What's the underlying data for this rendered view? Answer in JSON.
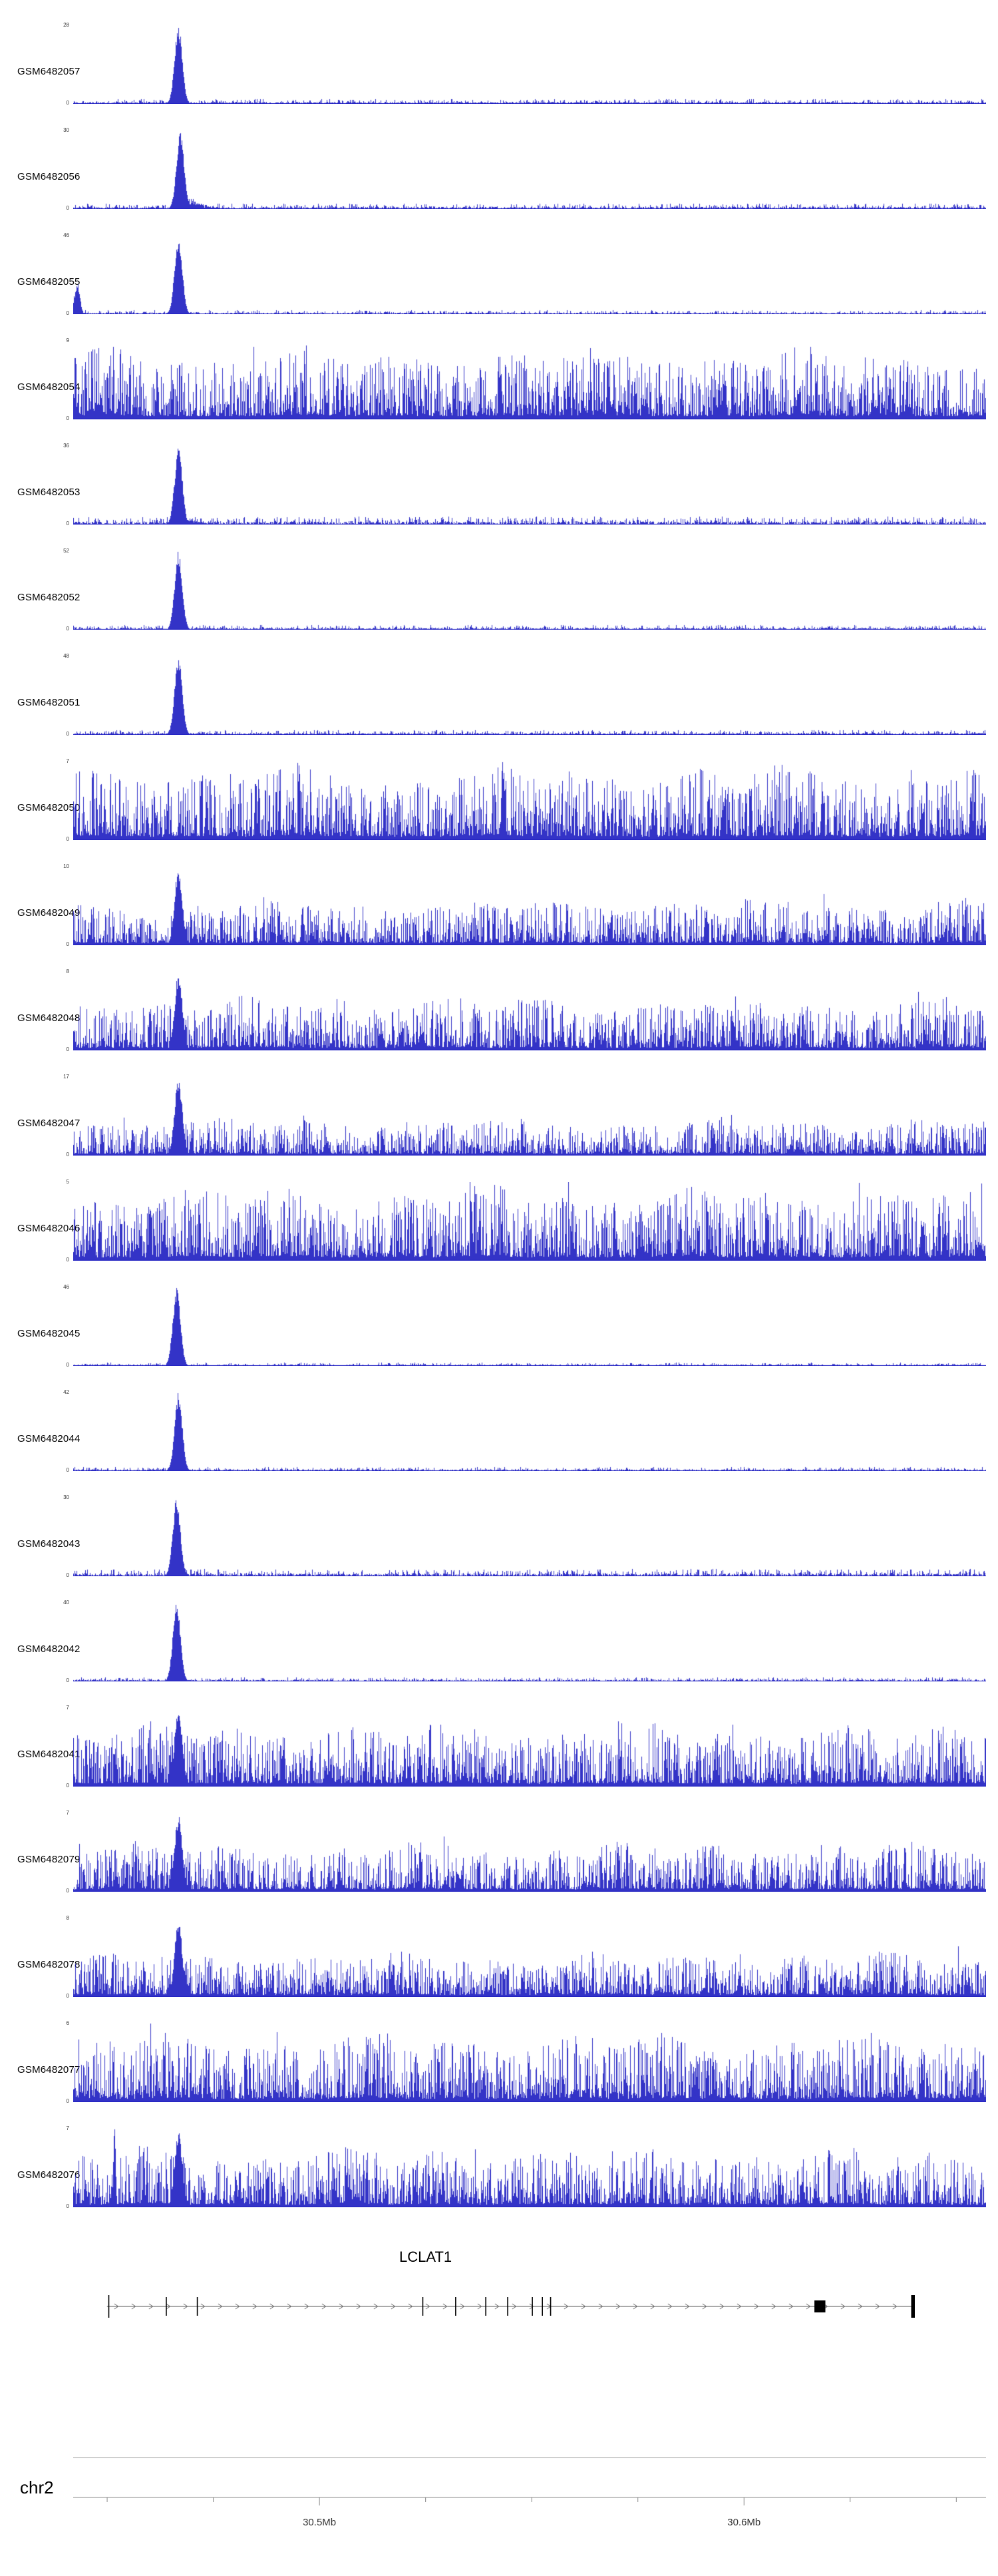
{
  "colors": {
    "signal": "#2222c2",
    "gene": "#000000",
    "axis": "#888888",
    "tick_text": "#333333"
  },
  "chart_data": {
    "type": "area",
    "title": "",
    "description": "Genome browser view of coverage/signal tracks (blue histograms) over chr2 around the LCLAT1 locus. Per-base values are not individually readable; each track is summarized by its y-axis maximum, baseline 0, and signal profile (sharp promoter peak near fraction 0.115 of the window vs. dense genome-wide noise).",
    "x_axis": {
      "chromosome": "chr2",
      "start_mb": 30.442,
      "end_mb": 30.657,
      "tick_values_mb": [
        30.45,
        30.475,
        30.5,
        30.525,
        30.55,
        30.575,
        30.6,
        30.625,
        30.65
      ],
      "labeled_ticks": [
        {
          "value": 30.5,
          "label": "30.5Mb"
        },
        {
          "value": 30.6,
          "label": "30.6Mb"
        }
      ]
    },
    "gene_track": {
      "name": "LCLAT1",
      "label_pos": 0.386,
      "strand": "+",
      "line_start": 0.037,
      "line_end": 0.921,
      "exon_ticks": [
        0.039,
        0.102,
        0.136,
        0.383,
        0.419,
        0.452,
        0.476,
        0.503,
        0.514,
        0.523
      ],
      "exon_boxes": [
        {
          "pos": 0.818,
          "width": 0.012,
          "height": 18
        },
        {
          "pos": 0.92,
          "width": 0.004,
          "height": 34
        }
      ],
      "arrow_spacing_px": 26
    },
    "tracks": [
      {
        "name": "GSM6482057",
        "ymax": 28,
        "ymin": 0,
        "profile": "peak",
        "bg": 0.06,
        "peak_pos": 0.115,
        "seed": 101
      },
      {
        "name": "GSM6482056",
        "ymax": 30,
        "ymin": 0,
        "profile": "peak",
        "bg": 0.07,
        "peak_pos": 0.117,
        "tail": 0.3,
        "seed": 102
      },
      {
        "name": "GSM6482055",
        "ymax": 46,
        "ymin": 0,
        "profile": "peak",
        "bg": 0.05,
        "peak_pos": 0.115,
        "left_peak": {
          "pos": 0.004,
          "height": 0.42,
          "sigma": 0.003
        },
        "seed": 103
      },
      {
        "name": "GSM6482054",
        "ymax": 9,
        "ymin": 0,
        "profile": "noise",
        "noise_amp": 0.95,
        "seed": 104
      },
      {
        "name": "GSM6482053",
        "ymax": 36,
        "ymin": 0,
        "profile": "peak",
        "bg": 0.1,
        "peak_pos": 0.115,
        "tail": 0.18,
        "seed": 105
      },
      {
        "name": "GSM6482052",
        "ymax": 52,
        "ymin": 0,
        "profile": "peak",
        "bg": 0.06,
        "peak_pos": 0.115,
        "seed": 106
      },
      {
        "name": "GSM6482051",
        "ymax": 48,
        "ymin": 0,
        "profile": "peak",
        "bg": 0.06,
        "peak_pos": 0.115,
        "seed": 107
      },
      {
        "name": "GSM6482050",
        "ymax": 7,
        "ymin": 0,
        "profile": "noise",
        "noise_amp": 1.0,
        "spikes": [
          {
            "pos": 0.47,
            "height": 1.0
          }
        ],
        "seed": 108
      },
      {
        "name": "GSM6482049",
        "ymax": 10,
        "ymin": 0,
        "profile": "peak-noise",
        "noise_amp": 0.62,
        "peak_pos": 0.115,
        "seed": 109
      },
      {
        "name": "GSM6482048",
        "ymax": 8,
        "ymin": 0,
        "profile": "peak-noise",
        "noise_amp": 0.72,
        "peak_pos": 0.115,
        "seed": 110
      },
      {
        "name": "GSM6482047",
        "ymax": 17,
        "ymin": 0,
        "profile": "peak-noise",
        "noise_amp": 0.5,
        "peak_pos": 0.115,
        "seed": 111
      },
      {
        "name": "GSM6482046",
        "ymax": 5,
        "ymin": 0,
        "profile": "noise",
        "noise_amp": 1.0,
        "seed": 112
      },
      {
        "name": "GSM6482045",
        "ymax": 46,
        "ymin": 0,
        "profile": "peak",
        "bg": 0.04,
        "peak_pos": 0.113,
        "seed": 113
      },
      {
        "name": "GSM6482044",
        "ymax": 42,
        "ymin": 0,
        "profile": "peak",
        "bg": 0.05,
        "peak_pos": 0.115,
        "seed": 114
      },
      {
        "name": "GSM6482043",
        "ymax": 30,
        "ymin": 0,
        "profile": "peak",
        "bg": 0.09,
        "peak_pos": 0.113,
        "seed": 115
      },
      {
        "name": "GSM6482042",
        "ymax": 40,
        "ymin": 0,
        "profile": "peak",
        "bg": 0.05,
        "peak_pos": 0.113,
        "seed": 116
      },
      {
        "name": "GSM6482041",
        "ymax": 7,
        "ymin": 0,
        "profile": "peak-noise",
        "noise_amp": 0.85,
        "peak_pos": 0.115,
        "seed": 117
      },
      {
        "name": "GSM6482079",
        "ymax": 7,
        "ymin": 0,
        "profile": "peak-noise",
        "noise_amp": 0.66,
        "peak_pos": 0.115,
        "seed": 118
      },
      {
        "name": "GSM6482078",
        "ymax": 8,
        "ymin": 0,
        "profile": "peak-noise",
        "noise_amp": 0.6,
        "peak_pos": 0.115,
        "seed": 119
      },
      {
        "name": "GSM6482077",
        "ymax": 6,
        "ymin": 0,
        "profile": "noise",
        "noise_amp": 0.92,
        "seed": 120
      },
      {
        "name": "GSM6482076",
        "ymax": 7,
        "ymin": 0,
        "profile": "peak-noise",
        "noise_amp": 0.8,
        "peak_pos": 0.115,
        "spikes": [
          {
            "pos": 0.045,
            "height": 1.0
          }
        ],
        "seed": 121
      }
    ],
    "zero_label": "0"
  }
}
